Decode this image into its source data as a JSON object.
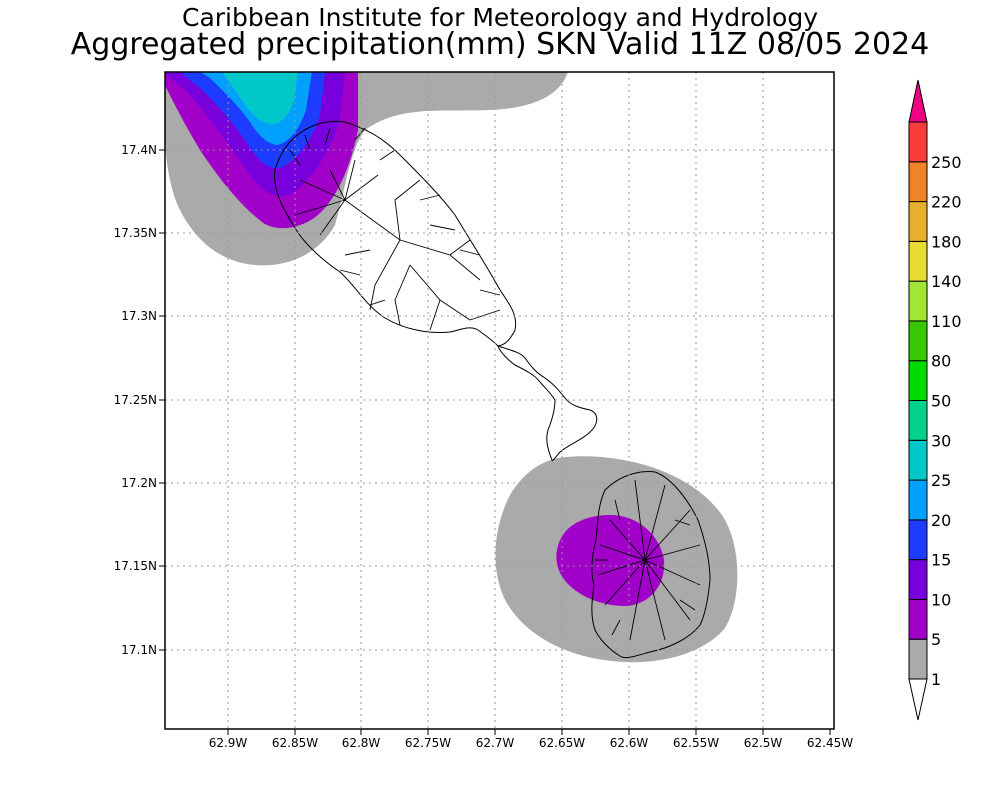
{
  "title": {
    "line1": "Caribbean Institute for Meteorology and Hydrology",
    "line2": "Aggregated precipitation(mm) SKN Valid 11Z 08/05 2024"
  },
  "axes": {
    "x_ticks": [
      "62.9W",
      "62.85W",
      "62.8W",
      "62.75W",
      "62.7W",
      "62.65W",
      "62.6W",
      "62.55W",
      "62.5W",
      "62.45W"
    ],
    "y_ticks": [
      "17.4N",
      "17.35N",
      "17.3N",
      "17.25N",
      "17.2N",
      "17.15N",
      "17.1N"
    ],
    "grid": "dotted"
  },
  "colorbar": {
    "unit": "mm",
    "levels": [
      "1",
      "5",
      "10",
      "15",
      "20",
      "25",
      "30",
      "50",
      "80",
      "110",
      "140",
      "180",
      "220",
      "250"
    ],
    "colors": [
      "#ffffff",
      "#aaaaaa",
      "#a000c8",
      "#7800dc",
      "#1e3cff",
      "#00a0ff",
      "#00c8c8",
      "#00d28c",
      "#00dc00",
      "#38c800",
      "#a0e632",
      "#e6dc32",
      "#e6af2d",
      "#f08228",
      "#fa3c3c",
      "#f00082"
    ]
  },
  "islands": [
    "St. Kitts",
    "Nevis"
  ],
  "precip_areas": [
    {
      "name": "northwest-offshore-rain",
      "max_class": "25-30",
      "colors": [
        "#aaaaaa",
        "#a000c8",
        "#7800dc",
        "#1e3cff",
        "#00a0ff",
        "#00c8c8"
      ]
    },
    {
      "name": "nevis-rain",
      "max_class": "5-10",
      "colors": [
        "#aaaaaa",
        "#a000c8"
      ]
    }
  ]
}
